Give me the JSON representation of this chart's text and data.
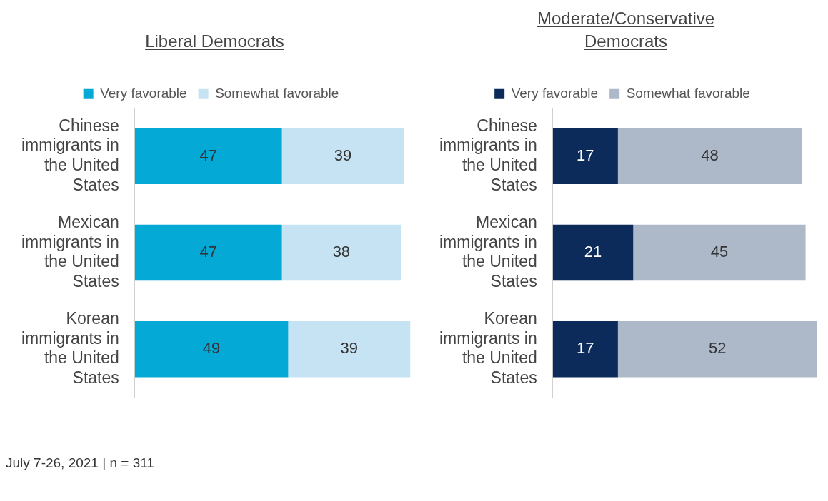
{
  "chart_data": [
    {
      "type": "bar",
      "orientation": "horizontal",
      "stacked": true,
      "title": "Liberal Democrats",
      "categories": [
        "Chinese immigrants in the United States",
        "Mexican immigrants in the United States",
        "Korean immigrants in the United States"
      ],
      "series": [
        {
          "name": "Very favorable",
          "color": "#05a9d6",
          "values": [
            47,
            47,
            49
          ]
        },
        {
          "name": "Somewhat favorable",
          "color": "#c5e3f3",
          "values": [
            39,
            38,
            39
          ]
        }
      ],
      "tick_labels": "y",
      "grid": false,
      "legend": "top",
      "data_labels": true,
      "annotations": [
        "July 7-26, 2021 | n = 311"
      ]
    },
    {
      "type": "bar",
      "orientation": "horizontal",
      "stacked": true,
      "title": "Moderate/Conservative Democrats",
      "categories": [
        "Chinese immigrants in the United States",
        "Mexican immigrants in the United States",
        "Korean immigrants in the United States"
      ],
      "series": [
        {
          "name": "Very favorable",
          "color": "#0c2b5b",
          "values": [
            17,
            21,
            17
          ]
        },
        {
          "name": "Somewhat favorable",
          "color": "#adb8c9",
          "values": [
            48,
            45,
            52
          ]
        }
      ],
      "tick_labels": "y",
      "grid": false,
      "legend": "top",
      "data_labels": true
    }
  ]
}
